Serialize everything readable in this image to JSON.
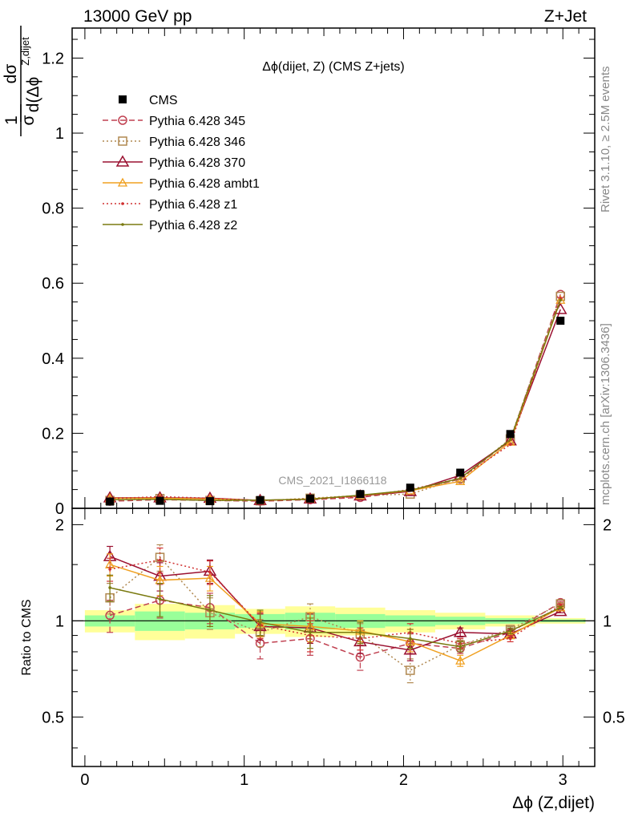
{
  "header": {
    "left_title": "13000 GeV pp",
    "right_title": "Z+Jet"
  },
  "side_labels": {
    "rivet": "Rivet 3.1.10, ≥ 2.5M events",
    "mcplots": "mcplots.cern.ch [arXiv:1306.3436]"
  },
  "chart_data": {
    "type": "line",
    "title": "Δϕ(dijet, Z) (CMS Z+jets)",
    "watermark": "CMS_2021_I1866118",
    "xlabel": "Δϕ (Z,dijet)",
    "ylabel_main_num": "dσ",
    "ylabel_main_den": "d(Δϕ",
    "ylabel_main_den_sup": "Z,dijet",
    "ylabel_main_pre_num": "1",
    "ylabel_main_pre_den": "σ",
    "ylabel_ratio": "Ratio to CMS",
    "xlim": [
      -0.08,
      3.2
    ],
    "ylim_main": [
      0,
      1.28
    ],
    "ylim_ratio": [
      0.35,
      2.25
    ],
    "x_ticks": [
      "0",
      "1",
      "2",
      "3"
    ],
    "x_tick_values": [
      0,
      1,
      2,
      3
    ],
    "y_ticks_main": [
      "0",
      "0.2",
      "0.4",
      "0.6",
      "0.8",
      "1",
      "1.2"
    ],
    "y_tick_values_main": [
      0,
      0.2,
      0.4,
      0.6,
      0.8,
      1.0,
      1.2
    ],
    "y_ticks_ratio": [
      "0.5",
      "1",
      "2"
    ],
    "y_tick_values_ratio": [
      0.5,
      1,
      2
    ],
    "x": [
      0.157,
      0.471,
      0.785,
      1.1,
      1.414,
      1.728,
      2.042,
      2.356,
      2.67,
      2.985
    ],
    "bin_edges": [
      0,
      0.314,
      0.628,
      0.942,
      1.257,
      1.571,
      1.885,
      2.199,
      2.513,
      2.827,
      3.142
    ],
    "data": {
      "name": "CMS",
      "values": [
        0.018,
        0.02,
        0.019,
        0.022,
        0.026,
        0.038,
        0.055,
        0.095,
        0.198,
        0.5
      ],
      "band_yellow": [
        0.08,
        0.13,
        0.12,
        0.09,
        0.11,
        0.1,
        0.08,
        0.06,
        0.04,
        0.02
      ],
      "band_green": [
        0.04,
        0.07,
        0.06,
        0.05,
        0.06,
        0.05,
        0.04,
        0.03,
        0.02,
        0.01
      ]
    },
    "series": [
      {
        "name": "Pythia 6.428 345",
        "color": "#c04050",
        "dash": "7,4",
        "marker": "circle",
        "values": [
          0.019,
          0.023,
          0.021,
          0.019,
          0.023,
          0.029,
          0.046,
          0.078,
          0.182,
          0.57
        ],
        "ratio": [
          1.04,
          1.16,
          1.1,
          0.85,
          0.88,
          0.77,
          0.85,
          0.82,
          0.92,
          1.14
        ],
        "err": [
          0.12,
          0.14,
          0.12,
          0.09,
          0.1,
          0.07,
          0.06,
          0.03,
          0.02,
          0.01
        ]
      },
      {
        "name": "Pythia 6.428 346",
        "color": "#b08850",
        "dash": "2,3",
        "marker": "square",
        "values": [
          0.021,
          0.026,
          0.021,
          0.02,
          0.027,
          0.034,
          0.038,
          0.08,
          0.185,
          0.565
        ],
        "ratio": [
          1.18,
          1.58,
          1.06,
          0.92,
          1.03,
          0.91,
          0.7,
          0.84,
          0.94,
          1.13
        ],
        "err": [
          0.13,
          0.15,
          0.12,
          0.09,
          0.1,
          0.07,
          0.06,
          0.03,
          0.02,
          0.01
        ]
      },
      {
        "name": "Pythia 6.428 370",
        "color": "#9a1030",
        "dash": "",
        "marker": "triangle",
        "values": [
          0.028,
          0.028,
          0.027,
          0.021,
          0.025,
          0.033,
          0.045,
          0.088,
          0.18,
          0.53
        ],
        "ratio": [
          1.59,
          1.38,
          1.43,
          0.96,
          0.95,
          0.86,
          0.81,
          0.92,
          0.91,
          1.07
        ],
        "err": [
          0.12,
          0.14,
          0.12,
          0.09,
          0.1,
          0.07,
          0.06,
          0.03,
          0.02,
          0.01
        ]
      },
      {
        "name": "Pythia 6.428 ambt1",
        "color": "#f0a020",
        "dash": "",
        "marker": "triangle-small",
        "values": [
          0.027,
          0.027,
          0.025,
          0.021,
          0.025,
          0.034,
          0.047,
          0.072,
          0.177,
          0.555
        ],
        "ratio": [
          1.5,
          1.34,
          1.36,
          0.98,
          0.96,
          0.93,
          0.86,
          0.75,
          0.9,
          1.1
        ],
        "err": [
          0.12,
          0.14,
          0.12,
          0.09,
          0.1,
          0.07,
          0.06,
          0.03,
          0.02,
          0.01
        ]
      },
      {
        "name": "Pythia 6.428 z1",
        "color": "#d03030",
        "dash": "2,3",
        "marker": "dot",
        "values": [
          0.026,
          0.031,
          0.027,
          0.021,
          0.024,
          0.032,
          0.05,
          0.08,
          0.17,
          0.56
        ],
        "ratio": [
          1.45,
          1.55,
          1.42,
          0.97,
          0.9,
          0.88,
          0.92,
          0.85,
          0.88,
          1.12
        ],
        "err": [
          0.12,
          0.14,
          0.12,
          0.09,
          0.1,
          0.07,
          0.06,
          0.03,
          0.02,
          0.01
        ]
      },
      {
        "name": "Pythia 6.428 z2",
        "color": "#7a7a10",
        "dash": "",
        "marker": "dot",
        "values": [
          0.023,
          0.024,
          0.021,
          0.022,
          0.024,
          0.035,
          0.048,
          0.08,
          0.183,
          0.555
        ],
        "ratio": [
          1.27,
          1.17,
          1.08,
          0.99,
          0.92,
          0.92,
          0.88,
          0.83,
          0.93,
          1.1
        ],
        "err": [
          0.12,
          0.14,
          0.12,
          0.09,
          0.1,
          0.07,
          0.06,
          0.03,
          0.02,
          0.01
        ]
      }
    ]
  }
}
